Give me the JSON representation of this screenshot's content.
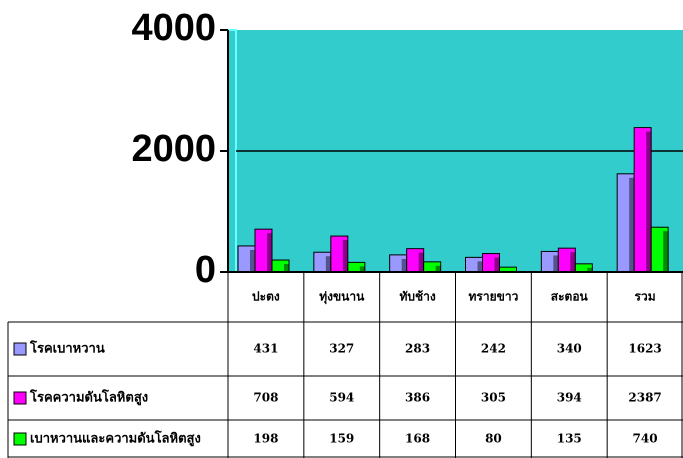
{
  "chart_data": {
    "type": "bar",
    "categories": [
      "ปะตง",
      "ทุ่งขนาน",
      "ทับช้าง",
      "ทรายขาว",
      "สะตอน",
      "รวม"
    ],
    "series": [
      {
        "name": "โรคเบาหวาน",
        "color": "#9999ff",
        "values": [
          431,
          327,
          283,
          242,
          340,
          1623
        ]
      },
      {
        "name": "โรคความดันโลหิตสูง",
        "color": "#ff00ff",
        "values": [
          708,
          594,
          386,
          305,
          394,
          2387
        ]
      },
      {
        "name": "เบาหวานและความดันโลหิตสูง",
        "color": "#00ff00",
        "values": [
          198,
          159,
          168,
          80,
          135,
          740
        ]
      }
    ],
    "ylim": [
      0,
      4000
    ],
    "yticks": [
      0,
      2000,
      4000
    ],
    "grid": true,
    "background": "#33cccc"
  }
}
